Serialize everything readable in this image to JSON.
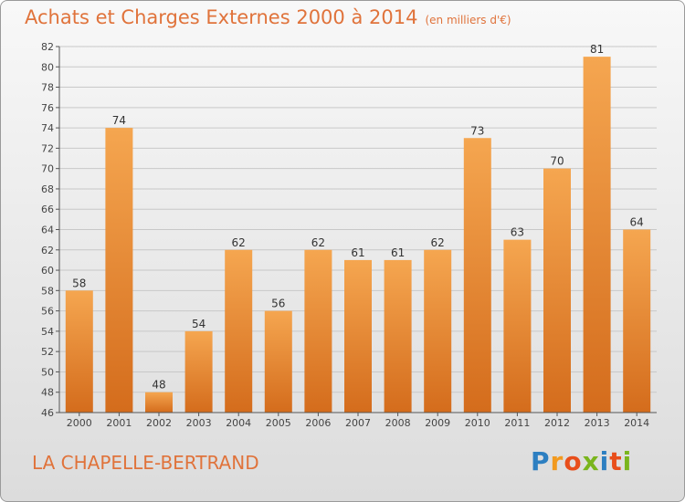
{
  "header": {
    "title": "Achats et Charges Externes 2000 à 2014",
    "subtitle": "(en milliers d'€)"
  },
  "footer": {
    "city": "LA CHAPELLE-BERTRAND",
    "logo": "Proxiti"
  },
  "colors": {
    "accent": "#e0733b",
    "bar_top": "#f5a650",
    "bar_bottom": "#d46c1c"
  },
  "chart_data": {
    "type": "bar",
    "categories": [
      "2000",
      "2001",
      "2002",
      "2003",
      "2004",
      "2005",
      "2006",
      "2007",
      "2008",
      "2009",
      "2010",
      "2011",
      "2012",
      "2013",
      "2014"
    ],
    "values": [
      58,
      74,
      48,
      54,
      62,
      56,
      62,
      61,
      61,
      62,
      73,
      63,
      70,
      81,
      64
    ],
    "title": "Achats et Charges Externes 2000 à 2014",
    "subtitle": "(en milliers d'€)",
    "ylim": [
      46,
      82
    ],
    "yticks": [
      46,
      48,
      50,
      52,
      54,
      56,
      58,
      60,
      62,
      64,
      66,
      68,
      70,
      72,
      74,
      76,
      78,
      80,
      82
    ],
    "grid": true,
    "data_labels": true
  }
}
